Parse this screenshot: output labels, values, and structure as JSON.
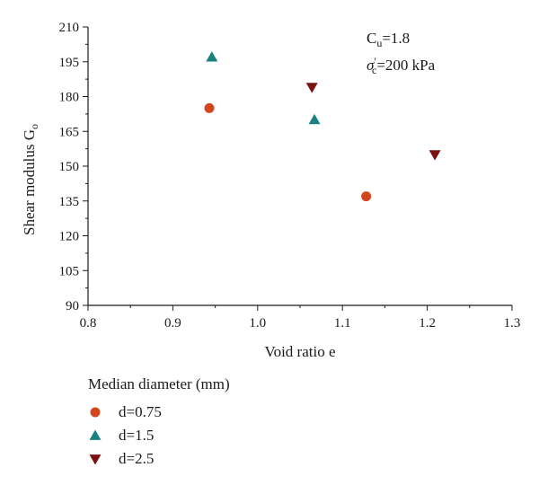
{
  "chart_data": {
    "type": "scatter",
    "xlabel": "Void ratio e",
    "ylabel_main": "Shear modulus G",
    "ylabel_sub": "o",
    "xlim": [
      0.8,
      1.3
    ],
    "ylim": [
      90,
      210
    ],
    "xticks": [
      "0.8",
      "0.9",
      "1.0",
      "1.1",
      "1.2",
      "1.3"
    ],
    "yticks": [
      "90",
      "105",
      "120",
      "135",
      "150",
      "165",
      "180",
      "195",
      "210"
    ],
    "grid": false,
    "legend_position": "bottom",
    "legend_title": "Median diameter (mm)",
    "annotation": {
      "line1_main": "C",
      "line1_sub": "u",
      "line1_rest": "=1.8",
      "line2_main": "σ",
      "line2_sup": "′",
      "line2_sub": "c",
      "line2_rest": "=200 kPa"
    },
    "series": [
      {
        "name": "d=0.75",
        "marker": "circle",
        "color": "#d2461e",
        "x": [
          0.943,
          1.128
        ],
        "y": [
          175,
          137
        ]
      },
      {
        "name": "d=1.5",
        "marker": "triangle-up",
        "color": "#1a8080",
        "x": [
          0.946,
          1.067
        ],
        "y": [
          197,
          170
        ]
      },
      {
        "name": "d=2.5",
        "marker": "triangle-down",
        "color": "#7a1212",
        "x": [
          1.064,
          1.209
        ],
        "y": [
          184,
          155
        ]
      }
    ]
  }
}
